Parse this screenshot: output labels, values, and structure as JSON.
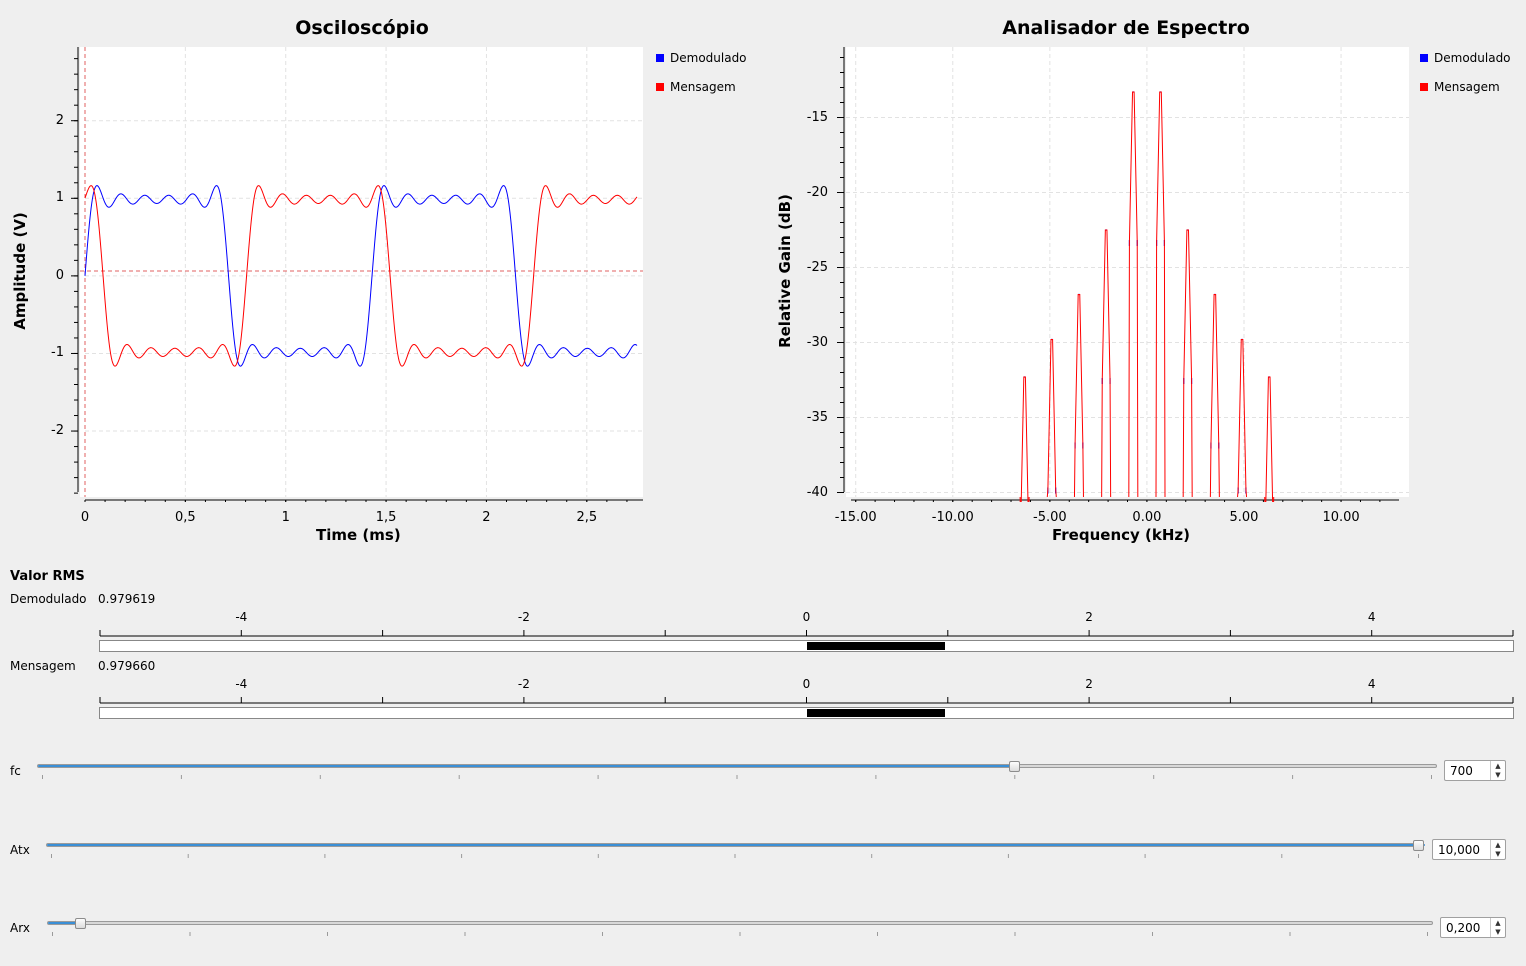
{
  "oscilloscope": {
    "title": "Osciloscópio",
    "xlabel": "Time (ms)",
    "ylabel": "Amplitude (V)",
    "legend": [
      {
        "name": "Demodulado",
        "color": "#0000ff"
      },
      {
        "name": "Mensagem",
        "color": "#ff0000"
      }
    ]
  },
  "spectrum": {
    "title": "Analisador de Espectro",
    "xlabel": "Frequency (kHz)",
    "ylabel": "Relative Gain (dB)",
    "legend": [
      {
        "name": "Demodulado",
        "color": "#0000ff"
      },
      {
        "name": "Mensagem",
        "color": "#ff0000"
      }
    ]
  },
  "chart_data": [
    {
      "type": "line",
      "title": "Osciloscópio",
      "xlabel": "Time (ms)",
      "ylabel": "Amplitude (V)",
      "xlim": [
        0,
        2.78
      ],
      "ylim": [
        -2.85,
        2.95
      ],
      "xticks": [
        "0",
        "0,5",
        "1",
        "1,5",
        "2",
        "2,5"
      ],
      "yticks": [
        "2",
        "1",
        "0",
        "-1",
        "-2"
      ],
      "grid": true,
      "legend_position": "right",
      "series": [
        {
          "name": "Demodulado",
          "color": "#0000ff",
          "waveform": "square",
          "amplitude": 1.0,
          "period_ms": 1.43,
          "first_transition_ms": 0.0
        },
        {
          "name": "Mensagem",
          "color": "#ff0000",
          "waveform": "square",
          "amplitude": 1.0,
          "period_ms": 1.43,
          "first_transition_ms": 0.09
        }
      ]
    },
    {
      "type": "line",
      "title": "Analisador de Espectro",
      "xlabel": "Frequency (kHz)",
      "ylabel": "Relative Gain (dB)",
      "xlim": [
        -15.5,
        13.5
      ],
      "ylim": [
        -40.3,
        -10.3
      ],
      "xticks": [
        "-15.00",
        "-10.00",
        "-5.00",
        "0.00",
        "5.00",
        "10.00"
      ],
      "yticks": [
        "-15",
        "-20",
        "-25",
        "-30",
        "-35",
        "-40"
      ],
      "grid": true,
      "legend_position": "right",
      "peaks_khz": [
        -6.3,
        -4.9,
        -3.5,
        -2.1,
        -0.7,
        0.7,
        2.1,
        3.5,
        4.9,
        6.3
      ],
      "peaks_db": [
        -32.3,
        -29.8,
        -26.8,
        -22.5,
        -13.3,
        -13.3,
        -22.5,
        -26.8,
        -29.8,
        -32.3
      ],
      "series": [
        {
          "name": "Demodulado",
          "color": "#0000ff"
        },
        {
          "name": "Mensagem",
          "color": "#ff0000"
        }
      ]
    }
  ],
  "rms": {
    "title": "Valor RMS",
    "ticks": [
      "-4",
      "-2",
      "0",
      "2",
      "4"
    ],
    "range": [
      -5,
      5
    ],
    "bars": [
      {
        "label": "Demodulado",
        "value_text": "0.979619",
        "value": 0.979619
      },
      {
        "label": "Mensagem",
        "value_text": "0.979660",
        "value": 0.97966
      }
    ]
  },
  "controls": {
    "fc": {
      "label": "fc",
      "value": "700",
      "fraction": 0.7
    },
    "atx": {
      "label": "Atx",
      "value": "10,000",
      "fraction": 1.0
    },
    "arx": {
      "label": "Arx",
      "value": "0,200",
      "fraction": 0.02
    }
  }
}
